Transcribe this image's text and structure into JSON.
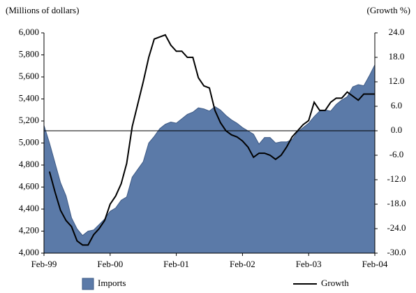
{
  "chart_data": {
    "type": "area-line",
    "y_label": "(Millions of dollars)",
    "y2_label": "(Growth %)",
    "categories": [
      "Feb-99",
      null,
      null,
      null,
      null,
      null,
      null,
      null,
      null,
      null,
      null,
      null,
      "Feb-00",
      null,
      null,
      null,
      null,
      null,
      null,
      null,
      null,
      null,
      null,
      null,
      "Feb-01",
      null,
      null,
      null,
      null,
      null,
      null,
      null,
      null,
      null,
      null,
      null,
      "Feb-02",
      null,
      null,
      null,
      null,
      null,
      null,
      null,
      null,
      null,
      null,
      null,
      "Feb-03",
      null,
      null,
      null,
      null,
      null,
      null,
      null,
      null,
      null,
      null,
      null,
      "Feb-04"
    ],
    "series": [
      {
        "name": "Imports",
        "type": "area",
        "color": "#5b7aa8",
        "values": [
          5160,
          5000,
          4820,
          4640,
          4520,
          4320,
          4220,
          4160,
          4200,
          4210,
          4260,
          4310,
          4380,
          4410,
          4480,
          4510,
          4690,
          4760,
          4830,
          5000,
          5060,
          5130,
          5170,
          5190,
          5180,
          5220,
          5260,
          5280,
          5320,
          5310,
          5290,
          5330,
          5300,
          5250,
          5210,
          5180,
          5140,
          5110,
          5080,
          4990,
          5050,
          5050,
          5000,
          5010,
          5010,
          5030,
          5100,
          5140,
          5180,
          5240,
          5290,
          5300,
          5290,
          5350,
          5390,
          5420,
          5510,
          5530,
          5520,
          5610,
          5710
        ]
      },
      {
        "name": "Growth",
        "type": "line",
        "color": "#000000",
        "axis": "y2",
        "values": [
          null,
          -10,
          -15,
          -19.5,
          -22,
          -23.5,
          -27,
          -28,
          -28,
          -25.5,
          -24,
          -22,
          -18,
          -16,
          -13,
          -8,
          1,
          6.5,
          12,
          18,
          22.5,
          23,
          23.5,
          21,
          19.5,
          19.5,
          18,
          18,
          13,
          11,
          10.5,
          5,
          2,
          0,
          -1,
          -1.5,
          -2.5,
          -4,
          -6.5,
          -5.5,
          -5.5,
          -6,
          -7,
          -6,
          -4,
          -1.5,
          0,
          1.5,
          2.5,
          7,
          5,
          5,
          7,
          8,
          8,
          9.5,
          8.5,
          7.5,
          9,
          9,
          9
        ]
      }
    ],
    "ylim": [
      4000,
      6000
    ],
    "yticks": [
      {
        "value": 4000,
        "label": "4,000"
      },
      {
        "value": 4200,
        "label": "4,200"
      },
      {
        "value": 4400,
        "label": "4,400"
      },
      {
        "value": 4600,
        "label": "4,600"
      },
      {
        "value": 4800,
        "label": "4,800"
      },
      {
        "value": 5000,
        "label": "5,000"
      },
      {
        "value": 5200,
        "label": "5,200"
      },
      {
        "value": 5400,
        "label": "5,400"
      },
      {
        "value": 5600,
        "label": "5,600"
      },
      {
        "value": 5800,
        "label": "5,800"
      },
      {
        "value": 6000,
        "label": "6,000"
      }
    ],
    "y2lim": [
      -30,
      24
    ],
    "y2ticks": [
      {
        "value": -30,
        "label": "-30.0"
      },
      {
        "value": -24,
        "label": "-24.0"
      },
      {
        "value": -18,
        "label": "-18.0"
      },
      {
        "value": -12,
        "label": "-12.0"
      },
      {
        "value": -6,
        "label": "-6.0"
      },
      {
        "value": 0,
        "label": "0.0"
      },
      {
        "value": 6,
        "label": "6.0"
      },
      {
        "value": 12,
        "label": "12.0"
      },
      {
        "value": 18,
        "label": "18.0"
      },
      {
        "value": 24,
        "label": "24.0"
      }
    ],
    "legend": "bottom"
  }
}
